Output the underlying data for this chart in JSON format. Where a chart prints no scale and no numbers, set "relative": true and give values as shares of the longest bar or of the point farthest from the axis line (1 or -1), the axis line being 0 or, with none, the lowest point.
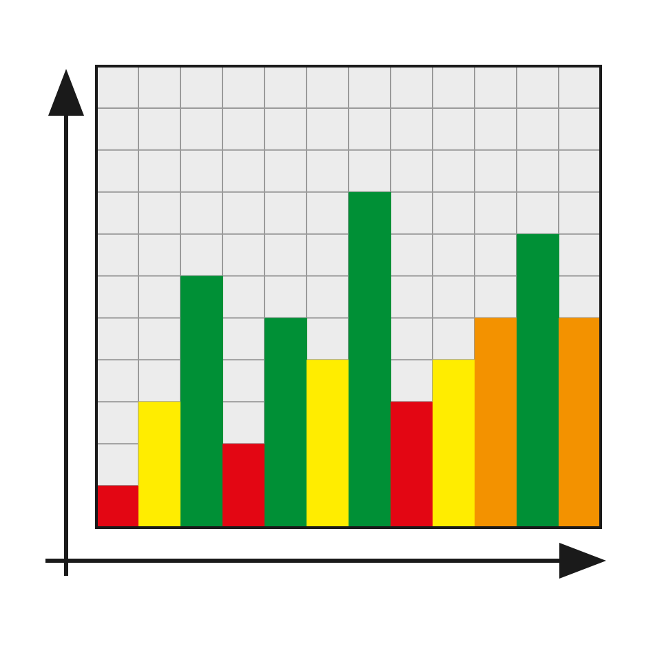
{
  "chart_data": {
    "type": "bar",
    "relative": true,
    "grid": true,
    "categories": [
      null,
      null,
      null,
      null,
      null,
      null,
      null,
      null,
      null,
      null,
      null,
      null
    ],
    "values": [
      0.125,
      0.375,
      0.75,
      0.25,
      0.625,
      0.5,
      1,
      0.375,
      0.5,
      0.625,
      0.875,
      0.625
    ],
    "colors": [
      "#e30613",
      "#ffed00",
      "#009036",
      "#e30613",
      "#009036",
      "#ffed00",
      "#009036",
      "#e30613",
      "#ffed00",
      "#f39200",
      "#009036",
      "#f39200"
    ]
  }
}
